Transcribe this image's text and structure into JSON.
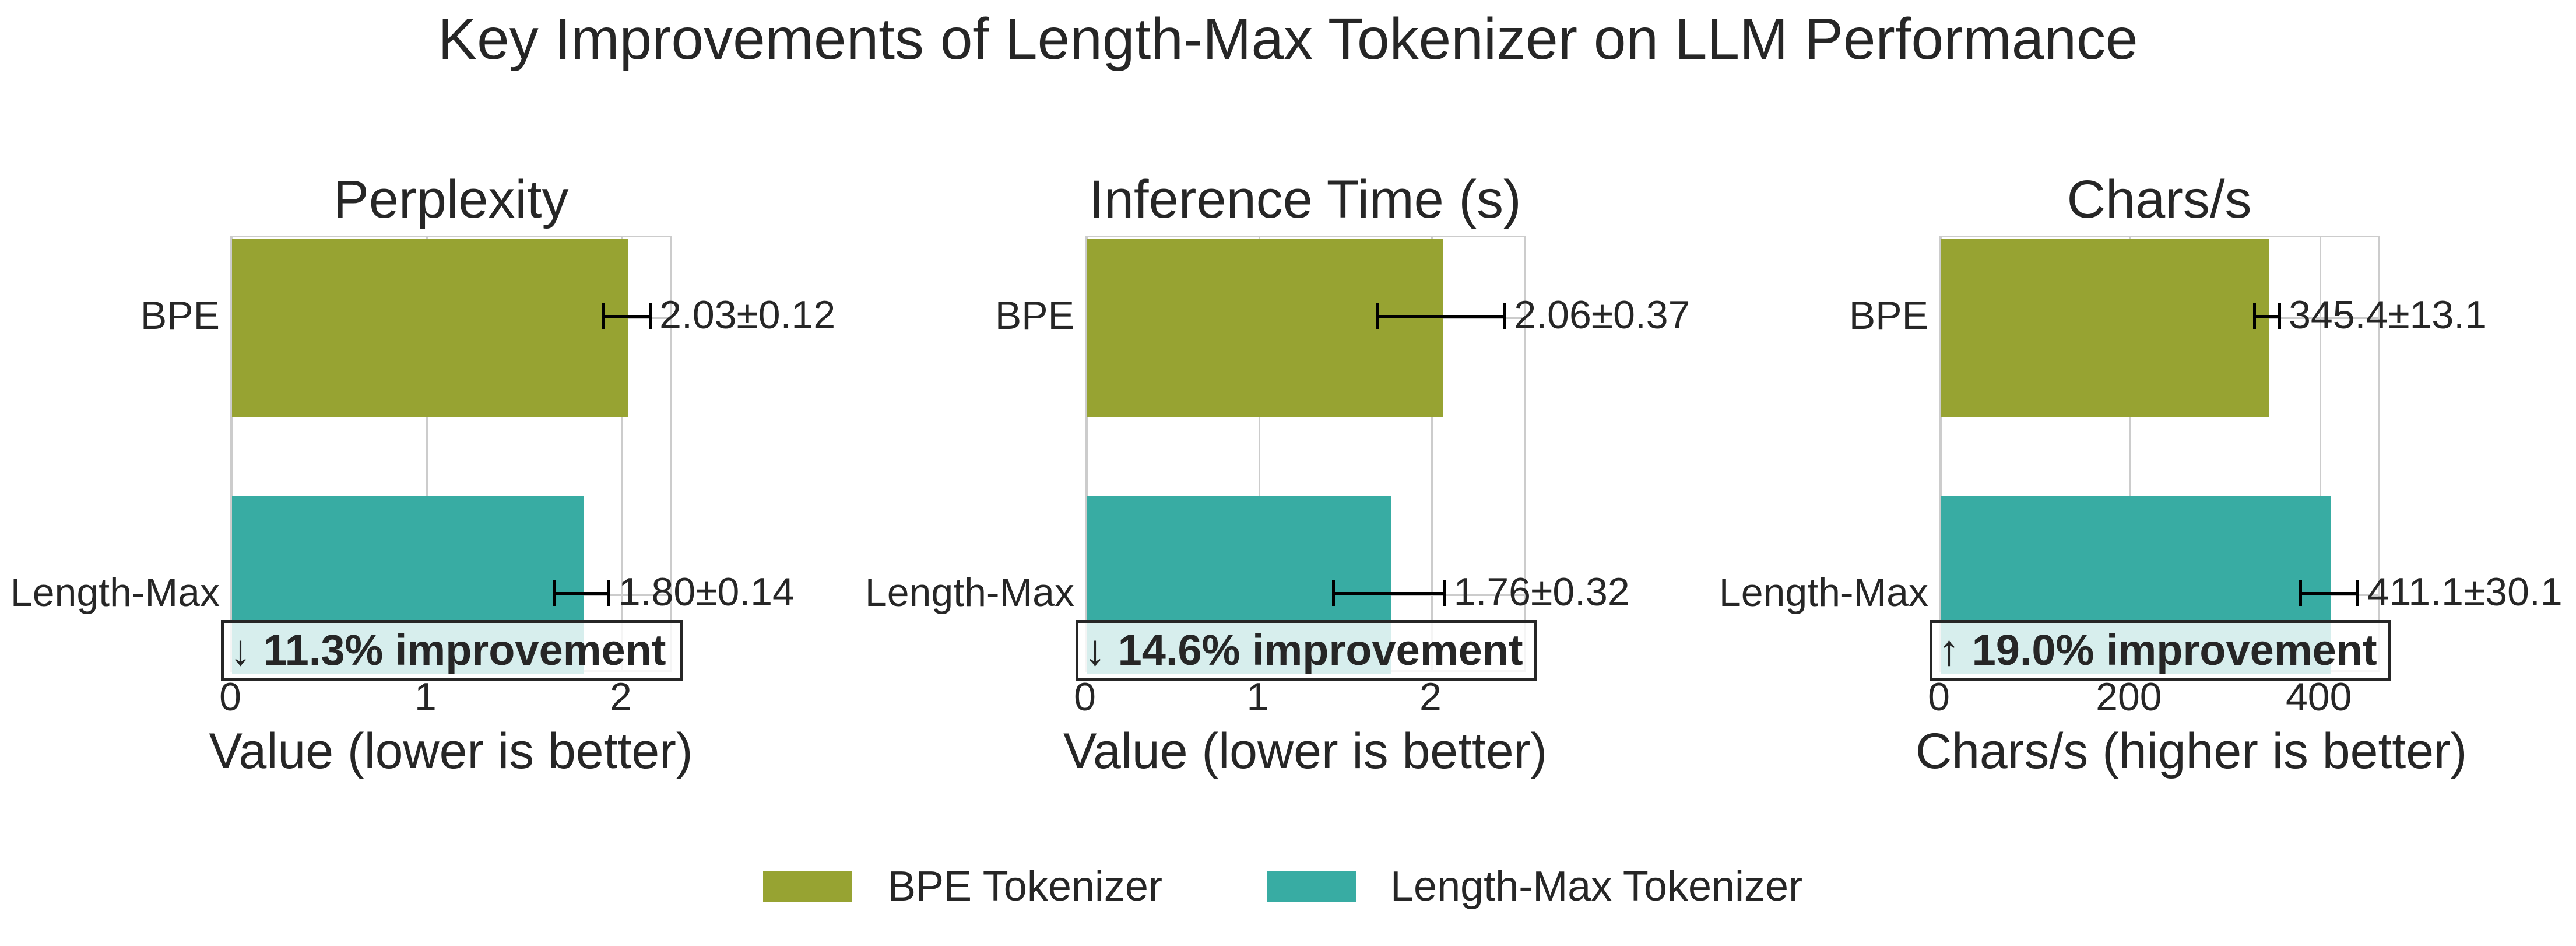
{
  "title": "Key Improvements of Length-Max Tokenizer on LLM Performance",
  "colors": {
    "bpe": "#97a332",
    "length_max": "#38aca3",
    "text": "#262626",
    "grid": "#cccccc"
  },
  "legend": {
    "items": [
      {
        "label": "BPE Tokenizer",
        "color": "#97a332"
      },
      {
        "label": "Length-Max Tokenizer",
        "color": "#38aca3"
      }
    ]
  },
  "subplots": [
    {
      "title": "Perplexity",
      "xlabel": "Value (lower is better)",
      "xticks": [
        "0",
        "1",
        "2"
      ],
      "categories": [
        "BPE",
        "Length-Max"
      ],
      "value_labels": [
        "2.03±0.12",
        "1.80±0.14"
      ],
      "improvement": {
        "arrow": "↓",
        "text": "11.3% improvement"
      }
    },
    {
      "title": "Inference Time (s)",
      "xlabel": "Value (lower is better)",
      "xticks": [
        "0",
        "1",
        "2"
      ],
      "categories": [
        "BPE",
        "Length-Max"
      ],
      "value_labels": [
        "2.06±0.37",
        "1.76±0.32"
      ],
      "improvement": {
        "arrow": "↓",
        "text": "14.6% improvement"
      }
    },
    {
      "title": "Chars/s",
      "xlabel": "Chars/s (higher is better)",
      "xticks": [
        "0",
        "200",
        "400"
      ],
      "categories": [
        "BPE",
        "Length-Max"
      ],
      "value_labels": [
        "345.4±13.1",
        "411.1±30.1"
      ],
      "improvement": {
        "arrow": "↑",
        "text": "19.0% improvement"
      }
    }
  ],
  "chart_data": [
    {
      "type": "bar",
      "orientation": "horizontal",
      "title": "Perplexity",
      "xlabel": "Value (lower is better)",
      "ylabel": "",
      "categories": [
        "BPE",
        "Length-Max"
      ],
      "values": [
        2.03,
        1.8
      ],
      "errors": [
        0.12,
        0.14
      ],
      "colors": [
        "#97a332",
        "#38aca3"
      ],
      "xlim": [
        0,
        2.26
      ],
      "xticks": [
        0,
        1,
        2
      ],
      "grid": true,
      "annotation": "↓ 11.3% improvement"
    },
    {
      "type": "bar",
      "orientation": "horizontal",
      "title": "Inference Time (s)",
      "xlabel": "Value (lower is better)",
      "ylabel": "",
      "categories": [
        "BPE",
        "Length-Max"
      ],
      "values": [
        2.06,
        1.76
      ],
      "errors": [
        0.37,
        0.32
      ],
      "colors": [
        "#97a332",
        "#38aca3"
      ],
      "xlim": [
        0,
        2.55
      ],
      "xticks": [
        0,
        1,
        2
      ],
      "grid": true,
      "annotation": "↓ 14.6% improvement"
    },
    {
      "type": "bar",
      "orientation": "horizontal",
      "title": "Chars/s",
      "xlabel": "Chars/s (higher is better)",
      "ylabel": "",
      "categories": [
        "BPE",
        "Length-Max"
      ],
      "values": [
        345.4,
        411.1
      ],
      "errors": [
        13.1,
        30.1
      ],
      "colors": [
        "#97a332",
        "#38aca3"
      ],
      "xlim": [
        0,
        464
      ],
      "xticks": [
        0,
        200,
        400
      ],
      "grid": true,
      "annotation": "↑ 19.0% improvement"
    }
  ],
  "figure_title": "Key Improvements of Length-Max Tokenizer on LLM Performance",
  "legend_position": "bottom center"
}
